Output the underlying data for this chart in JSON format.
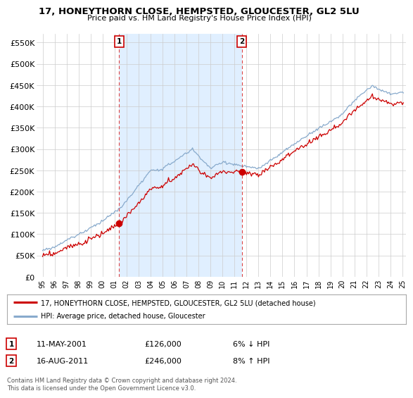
{
  "title": "17, HONEYTHORN CLOSE, HEMPSTED, GLOUCESTER, GL2 5LU",
  "subtitle": "Price paid vs. HM Land Registry's House Price Index (HPI)",
  "legend_line1": "17, HONEYTHORN CLOSE, HEMPSTED, GLOUCESTER, GL2 5LU (detached house)",
  "legend_line2": "HPI: Average price, detached house, Gloucester",
  "transaction1_date": "11-MAY-2001",
  "transaction1_price": "£126,000",
  "transaction1_hpi": "6% ↓ HPI",
  "transaction2_date": "16-AUG-2011",
  "transaction2_price": "£246,000",
  "transaction2_hpi": "8% ↑ HPI",
  "footer": "Contains HM Land Registry data © Crown copyright and database right 2024.\nThis data is licensed under the Open Government Licence v3.0.",
  "transaction1_year": 2001.37,
  "transaction2_year": 2011.62,
  "transaction1_value": 126000,
  "transaction2_value": 246000,
  "line_color_red": "#cc0000",
  "line_color_blue": "#88aacc",
  "marker_color": "#cc0000",
  "vline_color": "#dd4444",
  "shade_color": "#ddeeff",
  "plot_bg": "#ffffff",
  "grid_color": "#cccccc",
  "ylim": [
    0,
    570000
  ],
  "yticks": [
    0,
    50000,
    100000,
    150000,
    200000,
    250000,
    300000,
    350000,
    400000,
    450000,
    500000,
    550000
  ],
  "ytick_labels": [
    "£0",
    "£50K",
    "£100K",
    "£150K",
    "£200K",
    "£250K",
    "£300K",
    "£350K",
    "£400K",
    "£450K",
    "£500K",
    "£550K"
  ],
  "xlim_start": 1994.5,
  "xlim_end": 2025.3,
  "xticks": [
    1995,
    1996,
    1997,
    1998,
    1999,
    2000,
    2001,
    2002,
    2003,
    2004,
    2005,
    2006,
    2007,
    2008,
    2009,
    2010,
    2011,
    2012,
    2013,
    2014,
    2015,
    2016,
    2017,
    2018,
    2019,
    2020,
    2021,
    2022,
    2023,
    2024,
    2025
  ],
  "xtick_labels": [
    "95",
    "96",
    "97",
    "98",
    "99",
    "00",
    "01",
    "02",
    "03",
    "04",
    "05",
    "06",
    "07",
    "08",
    "09",
    "10",
    "11",
    "12",
    "13",
    "14",
    "15",
    "16",
    "17",
    "18",
    "19",
    "20",
    "21",
    "22",
    "23",
    "24",
    "25"
  ]
}
